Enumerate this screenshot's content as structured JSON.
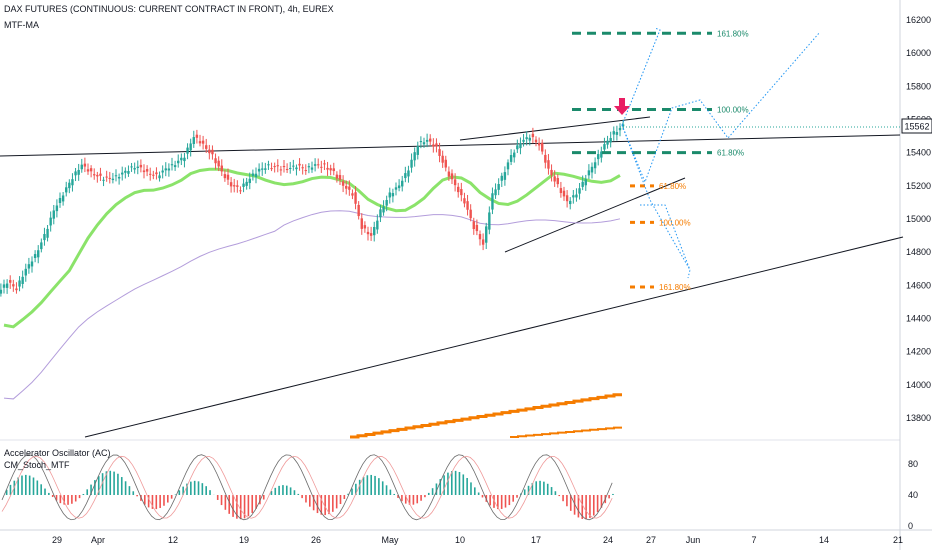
{
  "header": {
    "title": "DAX FUTURES (CONTINUOUS: CURRENT CONTRACT IN FRONT), 4h, EUREX",
    "indicator": "MTF-MA"
  },
  "lower_pane": {
    "indicator1": "Accelerator Oscillator (AC)",
    "indicator2": "CM_Stoch_MTF"
  },
  "price_label": "15562",
  "chart_data": {
    "type": "candlestick",
    "price_axis": {
      "ticks": [
        13800,
        14000,
        14200,
        14400,
        14600,
        14800,
        15000,
        15200,
        15400,
        15600,
        15800,
        16000,
        16200
      ],
      "range": [
        13650,
        16250
      ]
    },
    "osc_axis": {
      "ticks": [
        0,
        40,
        80
      ],
      "range": [
        -5,
        105
      ]
    },
    "time_axis": {
      "labels": [
        "29",
        "Apr",
        "12",
        "19",
        "26",
        "May",
        "10",
        "17",
        "24",
        "27",
        "Jun",
        "7",
        "14",
        "21"
      ]
    },
    "close_series": [
      14620,
      14580,
      14700,
      14780,
      14900,
      15050,
      15150,
      15250,
      15330,
      15280,
      15250,
      15240,
      15260,
      15300,
      15320,
      15280,
      15260,
      15300,
      15330,
      15380,
      15500,
      15450,
      15380,
      15280,
      15200,
      15180,
      15250,
      15300,
      15320,
      15310,
      15300,
      15320,
      15300,
      15330,
      15320,
      15280,
      15200,
      15150,
      14950,
      14900,
      15050,
      15150,
      15200,
      15300,
      15450,
      15480,
      15430,
      15300,
      15200,
      15100,
      14950,
      14850,
      15150,
      15250,
      15380,
      15460,
      15500,
      15450,
      15300,
      15200,
      15100,
      15150,
      15250,
      15350,
      15450,
      15520,
      15562
    ],
    "fib_levels": [
      {
        "label": "161.80%",
        "value": 16120
      },
      {
        "label": "100.00%",
        "value": 15660
      },
      {
        "label": "61.80%",
        "value": 15400
      },
      {
        "label": "61.80%",
        "value": 15200
      },
      {
        "label": "100.00%",
        "value": 14980
      },
      {
        "label": "161.80%",
        "value": 14590
      }
    ]
  },
  "colors": {
    "up": "#26a69a",
    "down": "#ef5350",
    "ma_fast": "#8be36a",
    "ma_slow": "#b39ddb",
    "fib_green": "#1b8a6b",
    "fib_orange": "#f57c00",
    "projection": "#2196f3",
    "arrow": "#e91e63"
  }
}
